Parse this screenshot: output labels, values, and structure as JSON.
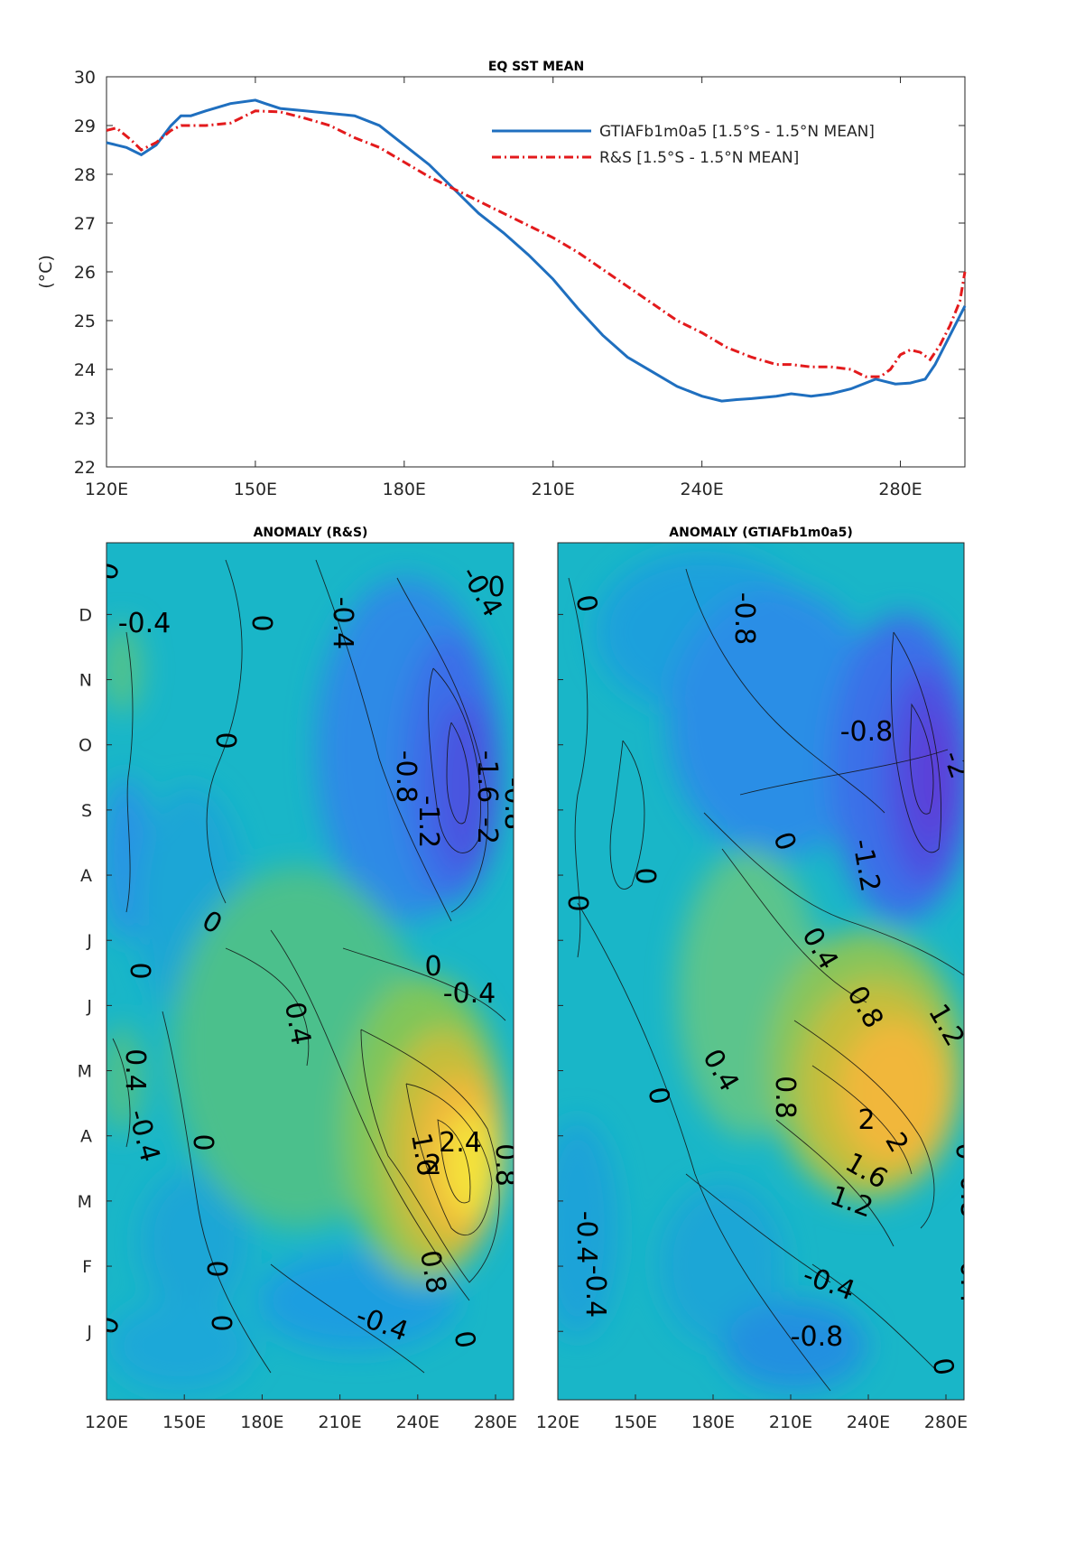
{
  "chart_data": [
    {
      "type": "line",
      "title": "EQ SST MEAN",
      "ylabel": "(°C)",
      "ylim": [
        22,
        30
      ],
      "xlim": [
        120,
        293
      ],
      "x_ticks": [
        120,
        150,
        180,
        210,
        240,
        280
      ],
      "x_tick_labels": [
        "120E",
        "150E",
        "180E",
        "210E",
        "240E",
        "280E"
      ],
      "y_ticks": [
        22,
        23,
        24,
        25,
        26,
        27,
        28,
        29,
        30
      ],
      "y_tick_labels": [
        "22",
        "23",
        "24",
        "25",
        "26",
        "27",
        "28",
        "29",
        "30"
      ],
      "legend_position": "top-right",
      "series": [
        {
          "name": "GTIAFb1m0a5 [1.5°S - 1.5°N MEAN]",
          "color": "#1f6fbf",
          "style": "solid",
          "x": [
            120,
            124,
            127,
            130,
            133,
            135,
            137,
            140,
            145,
            150,
            152,
            155,
            160,
            165,
            170,
            175,
            180,
            185,
            190,
            195,
            200,
            205,
            210,
            215,
            220,
            225,
            230,
            235,
            240,
            244,
            247,
            250,
            255,
            258,
            262,
            266,
            270,
            275,
            279,
            282,
            285,
            287,
            289,
            291,
            293
          ],
          "values": [
            28.65,
            28.55,
            28.4,
            28.6,
            29.0,
            29.2,
            29.2,
            29.3,
            29.45,
            29.52,
            29.45,
            29.35,
            29.3,
            29.25,
            29.2,
            29.0,
            28.6,
            28.2,
            27.7,
            27.2,
            26.8,
            26.35,
            25.85,
            25.25,
            24.7,
            24.25,
            23.95,
            23.65,
            23.45,
            23.35,
            23.38,
            23.4,
            23.45,
            23.5,
            23.45,
            23.5,
            23.6,
            23.8,
            23.7,
            23.72,
            23.8,
            24.1,
            24.5,
            24.9,
            25.3
          ]
        },
        {
          "name": "R&S [1.5°S - 1.5°N MEAN]",
          "color": "#e31a1c",
          "style": "dashdot",
          "x": [
            120,
            122,
            125,
            127,
            130,
            133,
            135,
            140,
            145,
            150,
            155,
            160,
            165,
            170,
            175,
            180,
            185,
            190,
            195,
            200,
            205,
            210,
            215,
            220,
            225,
            230,
            235,
            240,
            245,
            250,
            255,
            258,
            262,
            266,
            270,
            273,
            276,
            278,
            280,
            282,
            284,
            286,
            288,
            290,
            292,
            293
          ],
          "values": [
            28.9,
            28.95,
            28.7,
            28.5,
            28.65,
            28.9,
            29.0,
            29.0,
            29.05,
            29.3,
            29.28,
            29.15,
            29.0,
            28.75,
            28.55,
            28.25,
            27.95,
            27.7,
            27.45,
            27.2,
            26.95,
            26.7,
            26.4,
            26.05,
            25.7,
            25.35,
            25.0,
            24.75,
            24.45,
            24.25,
            24.1,
            24.1,
            24.05,
            24.05,
            24.0,
            23.85,
            23.85,
            24.0,
            24.3,
            24.4,
            24.35,
            24.2,
            24.5,
            24.9,
            25.4,
            26.0
          ]
        }
      ]
    },
    {
      "type": "heatmap",
      "title": "ANOMALY (R&S)",
      "x_tick_labels": [
        "120E",
        "150E",
        "180E",
        "210E",
        "240E",
        "280E"
      ],
      "y_tick_labels": [
        "J",
        "F",
        "M",
        "A",
        "M",
        "J",
        "J",
        "A",
        "S",
        "O",
        "N",
        "D"
      ],
      "contour_labels": [
        "0",
        "0",
        "-0.4",
        "-0.4",
        "0",
        "0",
        "-0.8",
        "-1.6",
        "-2",
        "-1.2",
        "-0.8",
        "-0.4",
        "0",
        "0",
        "0",
        "-0.4",
        "0.4",
        "0.4",
        "0",
        "2.4",
        "1.6",
        "2",
        "0.8",
        "0.8",
        "-0.4",
        "0",
        "0",
        "0",
        "-0.4",
        "0",
        "0"
      ]
    },
    {
      "type": "heatmap",
      "title": "ANOMALY (GTIAFb1m0a5)",
      "x_tick_labels": [
        "120E",
        "150E",
        "180E",
        "210E",
        "240E",
        "280E"
      ],
      "y_tick_labels": [
        "J",
        "F",
        "M",
        "A",
        "M",
        "J",
        "J",
        "A",
        "S",
        "O",
        "N",
        "D"
      ],
      "contour_labels": [
        "0",
        "-0.8",
        "0",
        "-0.8",
        "-2",
        "-1.2",
        "0",
        "0",
        "0",
        "0.4",
        "0.8",
        "1.2",
        "0.4",
        "0.8",
        "0",
        "2",
        "2",
        "1.6",
        "1.2",
        "0.8",
        "0.4",
        "-0.4",
        "-0.4",
        "-0.4",
        "-0.8",
        "0"
      ]
    }
  ]
}
